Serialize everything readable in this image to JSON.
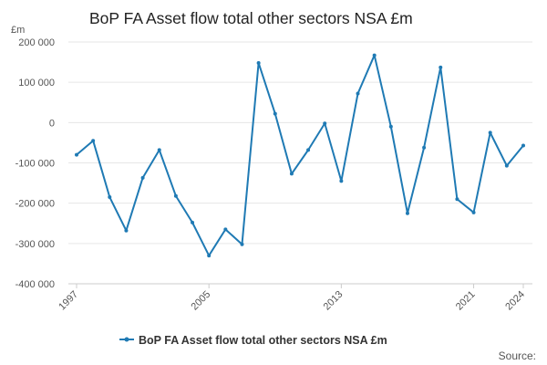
{
  "colors": {
    "series": "#1f77b4",
    "line": "#1f7ab4",
    "grid": "#e6e6e6",
    "axis": "#cccccc",
    "text": "#555555"
  },
  "chart_data": {
    "type": "line",
    "title": "BoP FA Asset flow total other sectors NSA £m",
    "ylabel": "£m",
    "xlabel": "",
    "ylim": [
      -400000,
      200000
    ],
    "y_ticks": [
      200000,
      100000,
      0,
      -100000,
      -200000,
      -300000,
      -400000
    ],
    "y_tick_labels": [
      "200 000",
      "100 000",
      "0",
      "-100 000",
      "-200 000",
      "-300 000",
      "-400 000"
    ],
    "x_ticks": [
      1997,
      2005,
      2013,
      2021,
      2024
    ],
    "x_tick_labels": [
      "1997",
      "2005",
      "2013",
      "2021",
      "2024"
    ],
    "series": [
      {
        "name": "BoP FA Asset flow total other sectors NSA £m",
        "x": [
          1997,
          1998,
          1999,
          2000,
          2001,
          2002,
          2003,
          2004,
          2005,
          2006,
          2007,
          2008,
          2009,
          2010,
          2011,
          2012,
          2013,
          2014,
          2015,
          2016,
          2017,
          2018,
          2019,
          2020,
          2021,
          2022,
          2023,
          2024
        ],
        "values": [
          -80000,
          -45000,
          -185000,
          -268000,
          -137000,
          -68000,
          -182000,
          -248000,
          -330000,
          -265000,
          -302000,
          148000,
          22000,
          -127000,
          -68000,
          -2000,
          -145000,
          72000,
          167000,
          -10000,
          -225000,
          -62000,
          137000,
          -190000,
          -223000,
          -25000,
          -107000,
          -57000
        ]
      }
    ],
    "legend": {
      "position": "bottom",
      "label": "BoP FA Asset flow total other sectors NSA £m"
    },
    "grid": true,
    "source_label": "Source:"
  }
}
